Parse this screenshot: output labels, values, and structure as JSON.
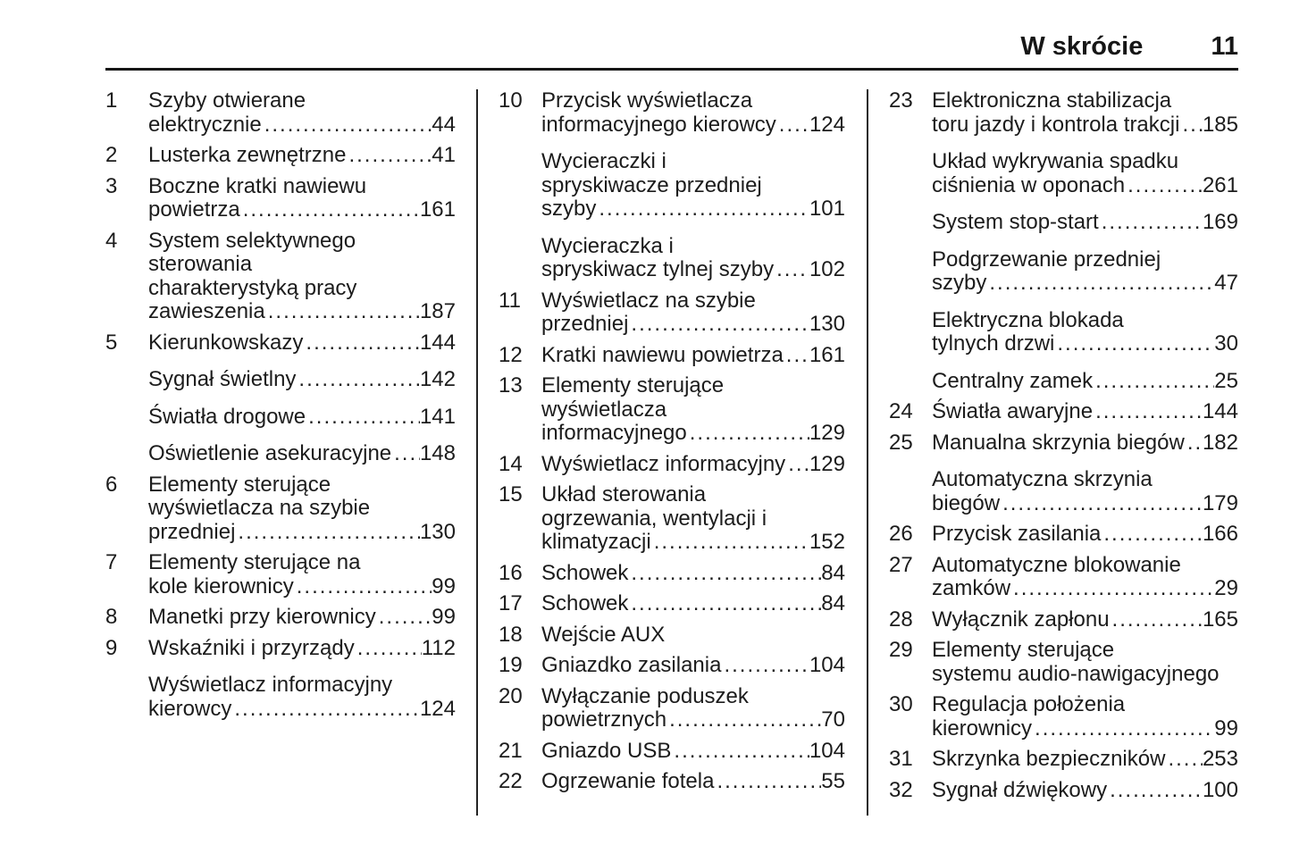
{
  "header": {
    "title": "W skrócie",
    "page_number": "11"
  },
  "leader_fill": "......................................................................",
  "text_color": "#1c1c1c",
  "columns": [
    {
      "entries": [
        {
          "num": "1",
          "lines": [
            "Szyby otwierane"
          ],
          "last": "elektrycznie",
          "page": "44"
        },
        {
          "num": "2",
          "lines": [],
          "last": "Lusterka zewnętrzne",
          "page": "41"
        },
        {
          "num": "3",
          "lines": [
            "Boczne kratki nawiewu"
          ],
          "last": "powietrza",
          "page": "161"
        },
        {
          "num": "4",
          "lines": [
            "System selektywnego",
            "sterowania",
            "charakterystyką pracy"
          ],
          "last": "zawieszenia",
          "page": "187"
        },
        {
          "num": "5",
          "lines": [],
          "last": "Kierunkowskazy",
          "page": "144"
        },
        {
          "num": "",
          "lines": [],
          "last": "Sygnał świetlny",
          "page": "142"
        },
        {
          "num": "",
          "lines": [],
          "last": "Światła drogowe",
          "page": "141"
        },
        {
          "num": "",
          "lines": [],
          "last": "Oświetlenie asekuracyjne",
          "page": "148"
        },
        {
          "num": "6",
          "lines": [
            "Elementy sterujące",
            "wyświetlacza na szybie"
          ],
          "last": "przedniej",
          "page": "130"
        },
        {
          "num": "7",
          "lines": [
            "Elementy sterujące na"
          ],
          "last": "kole kierownicy",
          "page": "99"
        },
        {
          "num": "8",
          "lines": [],
          "last": "Manetki przy kierownicy",
          "page": "99"
        },
        {
          "num": "9",
          "lines": [],
          "last": "Wskaźniki i przyrządy",
          "page": "112"
        },
        {
          "num": "",
          "lines": [
            "Wyświetlacz informacyjny"
          ],
          "last": "kierowcy",
          "page": "124"
        }
      ]
    },
    {
      "entries": [
        {
          "num": "10",
          "lines": [
            "Przycisk wyświetlacza"
          ],
          "last": "informacyjnego kierowcy",
          "page": "124"
        },
        {
          "num": "",
          "lines": [
            "Wycieraczki i",
            "spryskiwacze przedniej"
          ],
          "last": "szyby",
          "page": "101"
        },
        {
          "num": "",
          "lines": [
            "Wycieraczka i"
          ],
          "last": "spryskiwacz tylnej szyby",
          "page": "102"
        },
        {
          "num": "11",
          "lines": [
            "Wyświetlacz na szybie"
          ],
          "last": "przedniej",
          "page": "130"
        },
        {
          "num": "12",
          "lines": [],
          "last": "Kratki nawiewu powietrza",
          "page": "161"
        },
        {
          "num": "13",
          "lines": [
            "Elementy sterujące",
            "wyświetlacza"
          ],
          "last": "informacyjnego",
          "page": "129"
        },
        {
          "num": "14",
          "lines": [],
          "last": "Wyświetlacz informacyjny",
          "page": "129"
        },
        {
          "num": "15",
          "lines": [
            "Układ sterowania",
            "ogrzewania, wentylacji i"
          ],
          "last": "klimatyzacji",
          "page": "152"
        },
        {
          "num": "16",
          "lines": [],
          "last": "Schowek",
          "page": "84"
        },
        {
          "num": "17",
          "lines": [],
          "last": "Schowek",
          "page": "84"
        },
        {
          "num": "18",
          "lines": [],
          "last": "Wejście AUX",
          "page": ""
        },
        {
          "num": "19",
          "lines": [],
          "last": "Gniazdko zasilania",
          "page": "104"
        },
        {
          "num": "20",
          "lines": [
            "Wyłączanie poduszek"
          ],
          "last": "powietrznych",
          "page": "70"
        },
        {
          "num": "21",
          "lines": [],
          "last": "Gniazdo USB",
          "page": "104"
        },
        {
          "num": "22",
          "lines": [],
          "last": "Ogrzewanie fotela",
          "page": "55"
        }
      ]
    },
    {
      "entries": [
        {
          "num": "23",
          "lines": [
            "Elektroniczna stabilizacja"
          ],
          "last": "toru jazdy i kontrola trakcji",
          "page": "185"
        },
        {
          "num": "",
          "lines": [
            "Układ wykrywania spadku"
          ],
          "last": "ciśnienia w oponach",
          "page": "261"
        },
        {
          "num": "",
          "lines": [],
          "last": "System stop-start",
          "page": "169"
        },
        {
          "num": "",
          "lines": [
            "Podgrzewanie przedniej"
          ],
          "last": "szyby",
          "page": "47"
        },
        {
          "num": "",
          "lines": [
            "Elektryczna blokada"
          ],
          "last": "tylnych drzwi",
          "page": "30"
        },
        {
          "num": "",
          "lines": [],
          "last": "Centralny zamek",
          "page": "25"
        },
        {
          "num": "24",
          "lines": [],
          "last": "Światła awaryjne",
          "page": "144"
        },
        {
          "num": "25",
          "lines": [],
          "last": "Manualna skrzynia biegów",
          "page": "182"
        },
        {
          "num": "",
          "lines": [
            "Automatyczna skrzynia"
          ],
          "last": "biegów",
          "page": "179"
        },
        {
          "num": "26",
          "lines": [],
          "last": "Przycisk zasilania",
          "page": "166"
        },
        {
          "num": "27",
          "lines": [
            "Automatyczne blokowanie"
          ],
          "last": "zamków",
          "page": "29"
        },
        {
          "num": "28",
          "lines": [],
          "last": "Wyłącznik zapłonu",
          "page": "165"
        },
        {
          "num": "29",
          "lines": [
            "Elementy sterujące"
          ],
          "last": "systemu audio-nawigacyjnego",
          "page": ""
        },
        {
          "num": "30",
          "lines": [
            "Regulacja położenia"
          ],
          "last": "kierownicy",
          "page": "99"
        },
        {
          "num": "31",
          "lines": [],
          "last": "Skrzynka bezpieczników",
          "page": "253"
        },
        {
          "num": "32",
          "lines": [],
          "last": "Sygnał dźwiękowy",
          "page": "100"
        }
      ]
    }
  ]
}
